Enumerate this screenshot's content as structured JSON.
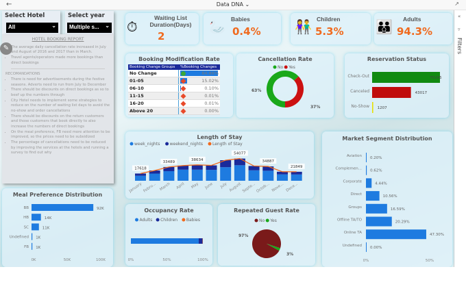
{
  "topbar": {
    "title": "Data DNA",
    "title_chevron": "chevron-down-icon",
    "back_icon": "back-arrow-icon",
    "collapse_icon": "collapse-icon"
  },
  "filters_pane": {
    "label": "Filters"
  },
  "slicers": {
    "hotel": {
      "label": "Select Hotel",
      "value": "All"
    },
    "year": {
      "label": "Select year",
      "value": "Multiple s..."
    }
  },
  "report": {
    "title": "HOTEL BOOKING REPORT",
    "insights": [
      "The average daily cancellation rate increased in July and August of 2016 and 2017 than in March.",
      "Travel agents/operators made more bookings than direct bookings"
    ],
    "rec_title": "RECOMANDATIONS",
    "recommendations": [
      "There is need for advertisements during the festive seasons. Adverts need to run from July to December",
      "There should be discounts on direct bookings as so to beef up the numbers through",
      "City Hotel needs to implement some strategies to reduce on the number of waiting list days to avoid the no-show and order cancellations",
      "There should be discounts on the return customers and those customers that book directly to also increase the numbers of direct bookings",
      "On the meal preference, FB need more attention to be improved, so the prices need to be subsidized",
      "The percentage of cancellations need to be reduced by improving the services at the hotels and running a survey to find out why"
    ]
  },
  "kpis": {
    "waiting": {
      "title": "Waiting List Duration(Days)",
      "value": "2"
    },
    "babies": {
      "title": "Babies",
      "value": "0.4%"
    },
    "children": {
      "title": "Children",
      "value": "5.3%"
    },
    "adults": {
      "title": "Adults",
      "value": "94.3%"
    }
  },
  "colors": {
    "accent": "#f06a1e",
    "blue": "#1e7be0",
    "navy": "#1a2a9a",
    "green": "#1aa81a",
    "red": "#cc1111",
    "maroon": "#7a1a1a"
  },
  "booking_mod": {
    "title": "Booking Modification Rate",
    "headers": [
      "Booking Change Groups",
      "%Booking Changes"
    ],
    "rows": [
      {
        "group": "No Change",
        "value": "84.86%",
        "pct": 84.86,
        "status": "green"
      },
      {
        "group": "01-05",
        "value": "15.02%",
        "pct": 15.02,
        "status": "red"
      },
      {
        "group": "06-10",
        "value": "0.10%",
        "pct": 0.1,
        "status": "red"
      },
      {
        "group": "11-15",
        "value": "0.01%",
        "pct": 0.01,
        "status": "red"
      },
      {
        "group": "16-20",
        "value": "0.01%",
        "pct": 0.01,
        "status": "red"
      },
      {
        "group": "Above 20",
        "value": "0.00%",
        "pct": 0,
        "status": "red"
      }
    ]
  },
  "chart_data": [
    {
      "id": "cancellation",
      "type": "pie",
      "donut": true,
      "title": "Cancellation Rate",
      "legend": [
        "No",
        "Yes"
      ],
      "values": [
        63,
        37
      ],
      "labels": [
        "63%",
        "37%"
      ],
      "colors": [
        "#1aa81a",
        "#cc1111"
      ]
    },
    {
      "id": "reservation",
      "type": "bar",
      "orientation": "horizontal",
      "title": "Reservation Status",
      "categories": [
        "Check-Out",
        "Canceled",
        "No-Show"
      ],
      "values": [
        75166,
        43017,
        1207
      ],
      "colors": [
        "#118a11",
        "#c00c0c",
        "#e8e000"
      ]
    },
    {
      "id": "stay",
      "type": "bar",
      "stacked": true,
      "title": "Length of Stay",
      "categories": [
        "January",
        "Febru...",
        "March",
        "April",
        "May",
        "June",
        "July",
        "August",
        "Septe...",
        "Octob...",
        "Nove...",
        "Dece..."
      ],
      "series": [
        {
          "name": "week_nights",
          "values": [
            12300,
            17500,
            23400,
            27000,
            27000,
            26500,
            33000,
            37800,
            25400,
            24400,
            15500,
            15300
          ]
        },
        {
          "name": "weekend_nights",
          "values": [
            5318,
            7500,
            10089,
            10000,
            11634,
            11000,
            17000,
            16277,
            10600,
            10487,
            6500,
            6549
          ]
        }
      ],
      "line": {
        "name": "Length of Stay",
        "values": [
          17618,
          25000,
          33489,
          37000,
          38634,
          37500,
          50000,
          54077,
          36000,
          34887,
          22000,
          21849
        ]
      },
      "data_labels": {
        "January": "17618",
        "March": "33489",
        "May": "38634",
        "August": "54077",
        "Octob...": "34887",
        "Dece...": "21849"
      },
      "legend": "top-left"
    },
    {
      "id": "market",
      "type": "bar",
      "orientation": "horizontal",
      "title": "Market Segment Distribution",
      "categories": [
        "Aviation",
        "Complemen...",
        "Corporate",
        "Direct",
        "Groups",
        "Offline TA/TO",
        "Online TA",
        "Undefined"
      ],
      "values": [
        0.2,
        0.62,
        4.44,
        10.56,
        16.59,
        20.29,
        47.3,
        0.0
      ],
      "labels": [
        "0.20%",
        "0.62%",
        "4.44%",
        "10.56%",
        "16.59%",
        "20.29%",
        "47.30%",
        "0.00%"
      ],
      "xticks": [
        "0%",
        "50%"
      ],
      "xlim": [
        0,
        60
      ]
    },
    {
      "id": "meal",
      "type": "bar",
      "orientation": "horizontal",
      "title": "Meal Preference Distribution",
      "categories": [
        "BB",
        "HB",
        "SC",
        "Undefined",
        "FB"
      ],
      "values": [
        92000,
        14000,
        11000,
        1000,
        1000
      ],
      "labels": [
        "92K",
        "14K",
        "11K",
        "1K",
        "1K"
      ],
      "xticks": [
        "0K",
        "50K",
        "100K"
      ],
      "xlim": [
        0,
        100000
      ]
    },
    {
      "id": "occupancy",
      "type": "bar",
      "orientation": "horizontal",
      "stacked": true,
      "title": "Occupancy Rate",
      "legend": [
        "Adults",
        "Children",
        "Babies"
      ],
      "values": [
        94.3,
        5.3,
        0.4
      ],
      "colors": [
        "#1e7be0",
        "#1a2a9a",
        "#f06a1e"
      ],
      "xticks": [
        "0%",
        "50%",
        "100%"
      ]
    },
    {
      "id": "repeated",
      "type": "pie",
      "title": "Repeated Guest Rate",
      "legend": [
        "No",
        "Yes"
      ],
      "values": [
        97,
        3
      ],
      "labels": [
        "97%",
        "3%"
      ],
      "colors": [
        "#7a1a1a",
        "#1aa81a"
      ]
    }
  ]
}
